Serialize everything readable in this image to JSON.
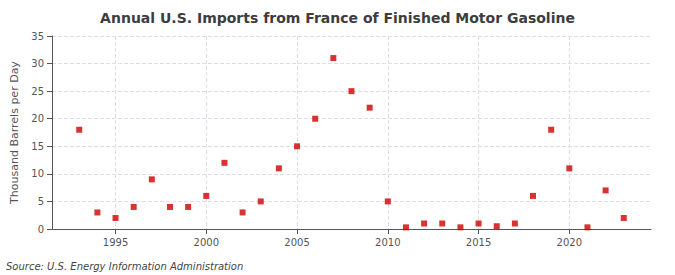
{
  "chart_data": {
    "type": "scatter",
    "title": "Annual U.S. Imports from France of Finished Motor Gasoline",
    "ylabel": "Thousand Barrels per Day",
    "annotation": "Source: U.S. Energy Information Administration",
    "x": [
      1993,
      1994,
      1995,
      1996,
      1997,
      1998,
      1999,
      2000,
      2001,
      2002,
      2003,
      2004,
      2005,
      2006,
      2007,
      2008,
      2009,
      2010,
      2011,
      2012,
      2013,
      2014,
      2015,
      2016,
      2017,
      2018,
      2019,
      2020,
      2021,
      2022,
      2023
    ],
    "values": [
      18,
      3,
      2,
      4,
      9,
      4,
      4,
      6,
      12,
      3,
      5,
      11,
      15,
      20,
      31,
      25,
      22,
      5,
      0.3,
      1,
      1,
      0.3,
      1,
      0.5,
      1,
      6,
      18,
      11,
      0.3,
      7,
      2
    ],
    "color": "#cc0000",
    "marker": "square",
    "xlim": [
      1991.5,
      2024.5
    ],
    "xticks": [
      1995,
      2000,
      2005,
      2010,
      2015,
      2020
    ],
    "ylim": [
      0,
      35
    ],
    "yticks": [
      0,
      5,
      10,
      15,
      20,
      25,
      30,
      35
    ],
    "grid": true
  }
}
